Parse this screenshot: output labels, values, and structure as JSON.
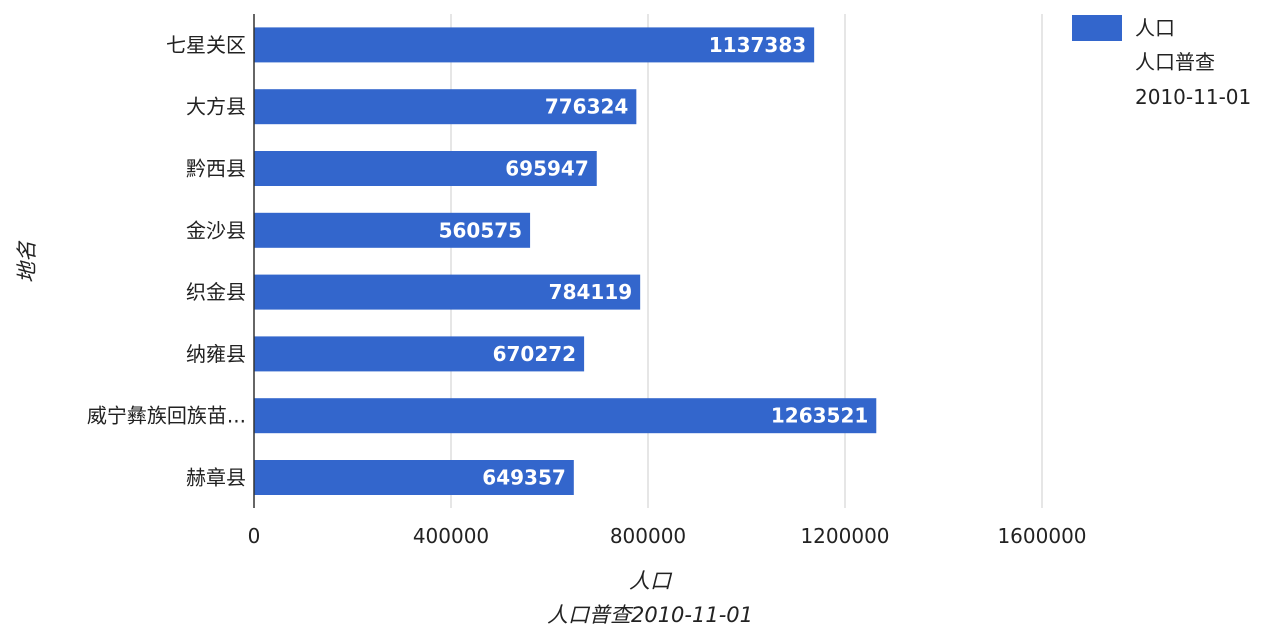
{
  "chart_data": {
    "type": "bar",
    "orientation": "horizontal",
    "categories": [
      "七星关区",
      "大方县",
      "黔西县",
      "金沙县",
      "织金县",
      "纳雍县",
      "威宁彝族回族苗...",
      "赫章县"
    ],
    "series": [
      {
        "name_lines": [
          "人口",
          "人口普查",
          "2010-11-01"
        ],
        "values": [
          1137383,
          776324,
          695947,
          560575,
          784119,
          670272,
          1263521,
          649357
        ],
        "color": "#3366cc"
      }
    ],
    "data_labels": [
      "1137383",
      "776324",
      "695947",
      "560575",
      "784119",
      "670272",
      "1263521",
      "649357"
    ],
    "xticks": [
      0,
      400000,
      800000,
      1200000,
      1600000
    ],
    "xtick_labels": [
      "0",
      "400000",
      "800000",
      "1200000",
      "1600000"
    ],
    "xlim": [
      0,
      2000000
    ],
    "xlabel_lines": [
      "人口",
      "人口普查2010-11-01"
    ],
    "ylabel": "地名",
    "grid": true,
    "legend_position": "right"
  }
}
